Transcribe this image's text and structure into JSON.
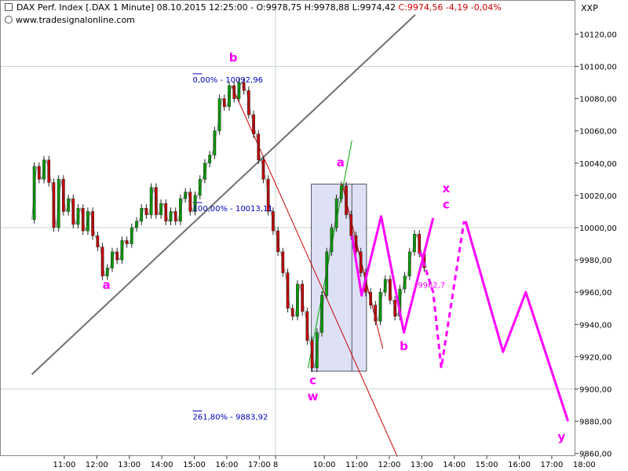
{
  "header": {
    "title": "DAX Perf. Index [.DAX  1 Minute] 08.10.2015 12:25:00 - O:9978,75 H:9978,88 L:9974,42",
    "close_change": "C:9974,56 -4,19 -0,04%",
    "website": "www.tradesignalonline.com",
    "axis_tag": "XXP"
  },
  "chart_data": {
    "type": "line",
    "title": "DAX Perf. Index [.DAX  1 Minute]",
    "ylim": [
      9855,
      10140
    ],
    "yticks": [
      "10120,00",
      "10100,00",
      "10080,00",
      "10060,00",
      "10040,00",
      "10020,00",
      "10000,00",
      "9980,00",
      "9960,00",
      "9940,00",
      "9920,00",
      "9900,00",
      "9880,00",
      "9860,00"
    ],
    "ytick_values": [
      10120,
      10100,
      10080,
      10060,
      10040,
      10020,
      10000,
      9980,
      9960,
      9940,
      9920,
      9900,
      9880,
      9860
    ],
    "xlim": [
      0,
      25.5
    ],
    "xticks": [
      {
        "label": "11:00",
        "x": 1
      },
      {
        "label": "12:00",
        "x": 2
      },
      {
        "label": "13:00",
        "x": 3
      },
      {
        "label": "14:00",
        "x": 4
      },
      {
        "label": "15:00",
        "x": 5
      },
      {
        "label": "16:00",
        "x": 6
      },
      {
        "label": "17:00",
        "x": 7
      },
      {
        "label": "8",
        "x": 7.5
      },
      {
        "label": "10:00",
        "x": 9
      },
      {
        "label": "11:00",
        "x": 10
      },
      {
        "label": "12:00",
        "x": 11
      },
      {
        "label": "13:00",
        "x": 12
      },
      {
        "label": "14:00",
        "x": 13
      },
      {
        "label": "15:00",
        "x": 14
      },
      {
        "label": "16:00",
        "x": 15
      },
      {
        "label": "17:00",
        "x": 16
      },
      {
        "label": "18:00",
        "x": 17
      }
    ],
    "horizontal_lines": [
      10100,
      10000,
      9900
    ],
    "vertical_lines": [
      7.5
    ],
    "price_path": [
      [
        0,
        10005
      ],
      [
        0.15,
        10038
      ],
      [
        0.3,
        10030
      ],
      [
        0.45,
        10042
      ],
      [
        0.6,
        10028
      ],
      [
        0.75,
        10000
      ],
      [
        0.9,
        10030
      ],
      [
        1.05,
        10010
      ],
      [
        1.2,
        10018
      ],
      [
        1.35,
        10002
      ],
      [
        1.5,
        10012
      ],
      [
        1.65,
        9998
      ],
      [
        1.8,
        10010
      ],
      [
        1.95,
        9995
      ],
      [
        2.1,
        9988
      ],
      [
        2.25,
        9970
      ],
      [
        2.4,
        9975
      ],
      [
        2.55,
        9985
      ],
      [
        2.7,
        9980
      ],
      [
        2.85,
        9992
      ],
      [
        3,
        9990
      ],
      [
        3.15,
        10000
      ],
      [
        3.3,
        10004
      ],
      [
        3.45,
        10012
      ],
      [
        3.6,
        10008
      ],
      [
        3.75,
        10025
      ],
      [
        3.9,
        10008
      ],
      [
        4.05,
        10015
      ],
      [
        4.2,
        10004
      ],
      [
        4.35,
        10010
      ],
      [
        4.5,
        10004
      ],
      [
        4.65,
        10018
      ],
      [
        4.8,
        10022
      ],
      [
        4.95,
        10010
      ],
      [
        5.1,
        10020
      ],
      [
        5.25,
        10030
      ],
      [
        5.4,
        10040
      ],
      [
        5.55,
        10045
      ],
      [
        5.7,
        10060
      ],
      [
        5.85,
        10080
      ],
      [
        6,
        10075
      ],
      [
        6.15,
        10088
      ],
      [
        6.3,
        10080
      ],
      [
        6.45,
        10090
      ],
      [
        6.6,
        10085
      ],
      [
        6.75,
        10070
      ],
      [
        6.9,
        10058
      ],
      [
        7.05,
        10042
      ],
      [
        7.2,
        10030
      ],
      [
        7.35,
        10010
      ],
      [
        7.5,
        9998
      ],
      [
        7.65,
        9985
      ],
      [
        7.8,
        9972
      ],
      [
        7.95,
        9950
      ],
      [
        8.1,
        9945
      ],
      [
        8.25,
        9965
      ],
      [
        8.4,
        9948
      ],
      [
        8.55,
        9930
      ],
      [
        8.7,
        9913
      ],
      [
        8.85,
        9935
      ],
      [
        9,
        9958
      ],
      [
        9.15,
        9985
      ],
      [
        9.3,
        10000
      ],
      [
        9.45,
        10018
      ],
      [
        9.6,
        10026
      ],
      [
        9.75,
        10008
      ],
      [
        9.9,
        9995
      ],
      [
        10.05,
        9985
      ],
      [
        10.2,
        9972
      ],
      [
        10.35,
        9960
      ],
      [
        10.5,
        9952
      ],
      [
        10.65,
        9942
      ],
      [
        10.8,
        9960
      ],
      [
        10.95,
        9968
      ],
      [
        11.1,
        9955
      ],
      [
        11.25,
        9945
      ],
      [
        11.4,
        9962
      ],
      [
        11.55,
        9970
      ],
      [
        11.7,
        9985
      ],
      [
        11.85,
        9996
      ],
      [
        12,
        9984
      ],
      [
        12.15,
        9975
      ]
    ],
    "forecast_solid": [
      [
        9.85,
        9995
      ],
      [
        10.15,
        9958
      ],
      [
        10.75,
        10007
      ],
      [
        11.45,
        9935
      ],
      [
        12.35,
        10006
      ]
    ],
    "forecast_dashed": [
      [
        11.95,
        9985
      ],
      [
        12.35,
        9960
      ],
      [
        12.6,
        9913
      ],
      [
        13.3,
        10004
      ]
    ],
    "forecast_solid_2": [
      [
        13.35,
        10004
      ],
      [
        14.5,
        9923
      ],
      [
        15.2,
        9960
      ],
      [
        16.5,
        9880
      ]
    ],
    "trendline_gray": [
      [
        0,
        9909
      ],
      [
        11.8,
        10132
      ]
    ],
    "trendline_red": [
      [
        6.15,
        10088
      ],
      [
        11.25,
        9858
      ]
    ],
    "trendline_red_2": [
      [
        9.55,
        10027
      ],
      [
        10.8,
        9925
      ]
    ],
    "trendline_green": [
      [
        8.5,
        9913
      ],
      [
        9.85,
        10054
      ]
    ],
    "rectangle": {
      "x0": 8.6,
      "x1": 10.3,
      "y0": 9911,
      "y1": 10027
    },
    "rectangle_mid": 9.85,
    "fib_levels": [
      {
        "label": "0,00% - 10092,96",
        "x": 5,
        "y": 10092.96
      },
      {
        "label": "100,00% - 10013,11",
        "x": 5,
        "y": 10013.11
      },
      {
        "label": "261,80% - 9883,92",
        "x": 5,
        "y": 9883.92
      }
    ],
    "annotations": [
      {
        "text": "a",
        "x": 2.3,
        "y": 9962
      },
      {
        "text": "b",
        "x": 6.2,
        "y": 10103
      },
      {
        "text": "a",
        "x": 9.5,
        "y": 10038
      },
      {
        "text": "x",
        "x": 12.75,
        "y": 10022
      },
      {
        "text": "c",
        "x": 12.75,
        "y": 10012
      },
      {
        "text": "b",
        "x": 11.45,
        "y": 9924
      },
      {
        "text": "c",
        "x": 8.65,
        "y": 9903
      },
      {
        "text": "w",
        "x": 8.65,
        "y": 9893
      },
      {
        "text": "y",
        "x": 16.3,
        "y": 9868
      },
      {
        "text": "9962,7",
        "x": 12.3,
        "y": 9962.7
      }
    ],
    "colors": {
      "forecast": "#ff00ff",
      "annotation": "#ff00ff",
      "fib_text": "#0000bb",
      "trendline_red": "#cc0000",
      "trendline_green": "#00aa00",
      "trendline_gray": "#707070",
      "rect_fill": "#d8dcf4",
      "rect_stroke": "#555566",
      "grid": "#c8d6c8",
      "price_up": "#00a000",
      "price_down": "#cc0000"
    }
  }
}
